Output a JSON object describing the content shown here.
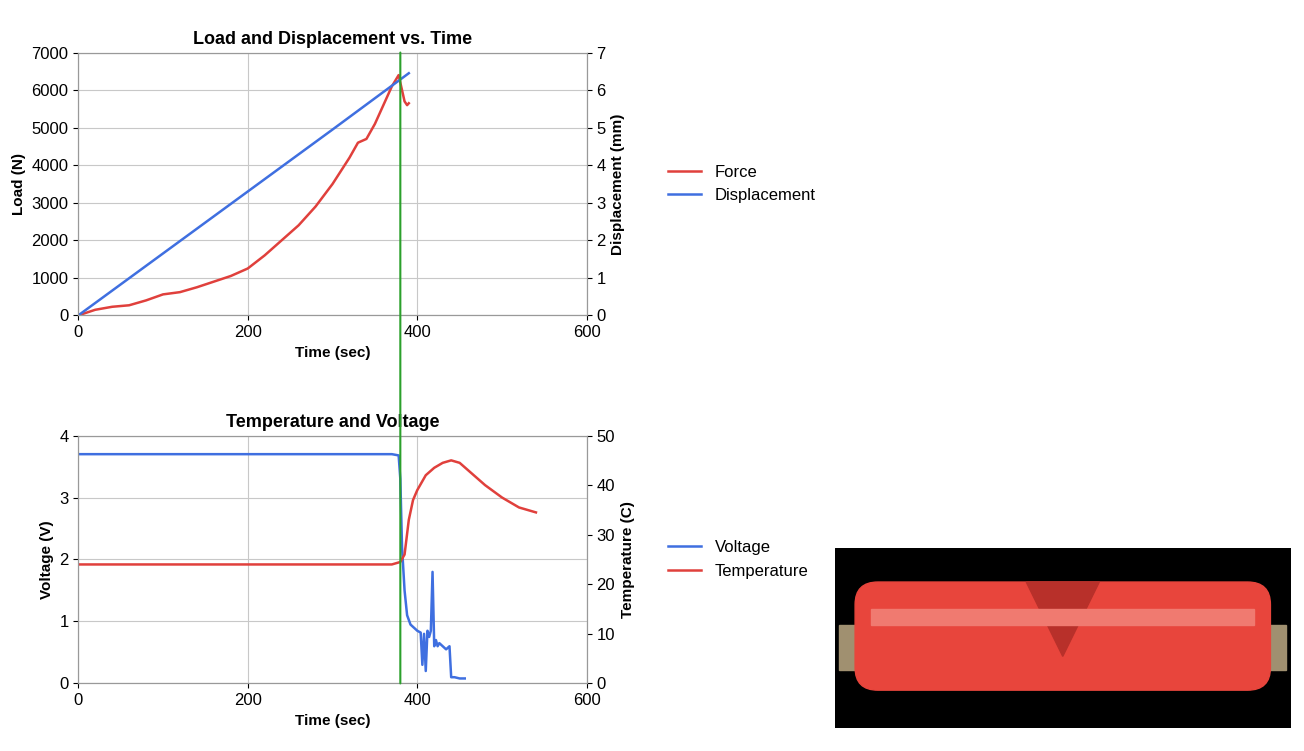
{
  "chart_data": [
    {
      "type": "line",
      "title": "Load and Displacement vs. Time",
      "x_label": "Time (sec)",
      "y_label": "Load (N)",
      "y2_label": "Displacement (mm)",
      "xlim": [
        0,
        600
      ],
      "xticks": [
        0,
        200,
        400,
        600
      ],
      "ylim": [
        0,
        7000
      ],
      "yticks": [
        0,
        1000,
        2000,
        3000,
        4000,
        5000,
        6000,
        7000
      ],
      "y2lim": [
        0,
        7
      ],
      "y2ticks": [
        0,
        1,
        2,
        3,
        4,
        5,
        6,
        7
      ],
      "grid": true,
      "legend": "right",
      "vline_x": 380,
      "series": [
        {
          "name": "Force",
          "color": "#e0403c",
          "axis": "y",
          "x": [
            0,
            20,
            40,
            60,
            80,
            100,
            120,
            140,
            160,
            180,
            200,
            220,
            240,
            260,
            280,
            300,
            320,
            330,
            340,
            350,
            360,
            370,
            378,
            382,
            385,
            388,
            390
          ],
          "values": [
            0,
            150,
            230,
            270,
            400,
            560,
            620,
            750,
            900,
            1050,
            1250,
            1600,
            2000,
            2400,
            2900,
            3500,
            4200,
            4600,
            4700,
            5100,
            5600,
            6100,
            6400,
            6000,
            5700,
            5600,
            5650
          ]
        },
        {
          "name": "Displacement",
          "color": "#3f6fe0",
          "axis": "y2",
          "x": [
            0,
            100,
            200,
            300,
            390
          ],
          "values": [
            0,
            1.65,
            3.3,
            4.95,
            6.45
          ]
        }
      ]
    },
    {
      "type": "line",
      "title": "Temperature and Voltage",
      "x_label": "Time (sec)",
      "y_label": "Voltage (V)",
      "y2_label": "Temperature (C)",
      "xlim": [
        0,
        600
      ],
      "xticks": [
        0,
        200,
        400,
        600
      ],
      "ylim": [
        0,
        4
      ],
      "yticks": [
        0,
        1,
        2,
        3,
        4
      ],
      "y2lim": [
        0,
        50
      ],
      "y2ticks": [
        0,
        10,
        20,
        30,
        40,
        50
      ],
      "grid": true,
      "legend": "right",
      "vline_x": 380,
      "series": [
        {
          "name": "Voltage",
          "color": "#3f6fe0",
          "axis": "y",
          "x": [
            0,
            370,
            378,
            380,
            382,
            385,
            388,
            392,
            396,
            400,
            404,
            406,
            408,
            410,
            412,
            414,
            416,
            418,
            420,
            422,
            424,
            426,
            430,
            434,
            438,
            440,
            444,
            450,
            456
          ],
          "values": [
            3.7,
            3.7,
            3.68,
            3.3,
            2.2,
            1.5,
            1.1,
            0.95,
            0.9,
            0.85,
            0.82,
            0.3,
            0.8,
            0.2,
            0.85,
            0.75,
            0.85,
            1.8,
            0.6,
            0.7,
            0.6,
            0.65,
            0.6,
            0.55,
            0.6,
            0.1,
            0.1,
            0.08,
            0.08
          ]
        },
        {
          "name": "Temperature",
          "color": "#e0403c",
          "axis": "y2",
          "x": [
            0,
            370,
            380,
            385,
            390,
            395,
            400,
            410,
            420,
            430,
            440,
            450,
            460,
            480,
            500,
            520,
            540
          ],
          "values": [
            24,
            24,
            24.5,
            26,
            33,
            37,
            39,
            42,
            43.5,
            44.5,
            45,
            44.5,
            43,
            40,
            37.5,
            35.5,
            34.5
          ]
        }
      ]
    }
  ]
}
